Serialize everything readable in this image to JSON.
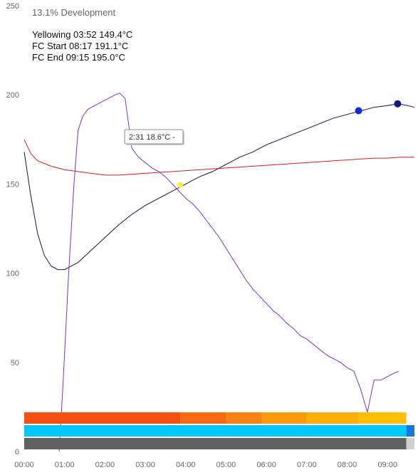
{
  "chart_data": {
    "type": "line",
    "title": "",
    "xlabel": "",
    "ylabel": "",
    "xlim": [
      0,
      580
    ],
    "ylim": [
      0,
      250
    ],
    "grid": false,
    "x_ticks": [
      "00:00",
      "01:00",
      "02:00",
      "03:00",
      "04:00",
      "05:00",
      "06:00",
      "07:00",
      "08:00",
      "09:00"
    ],
    "y_ticks": [
      "0",
      "50",
      "100",
      "150",
      "200",
      "250"
    ],
    "development_label": "13.1% Development",
    "events": [
      {
        "label": "Yellowing 03:52  149.4°C",
        "t": 232,
        "temp": 149.4,
        "color": "#f2ef3a"
      },
      {
        "label": "FC Start 08:17  191.1°C",
        "t": 497,
        "temp": 191.1,
        "color": "#1328e0"
      },
      {
        "label": "FC End 09:15  195.0°C",
        "t": 555,
        "temp": 195.0,
        "color": "#0b1a8a"
      }
    ],
    "tooltip": {
      "text": "2:31 18.6°C -"
    },
    "series": [
      {
        "color": "#13124a",
        "points": [
          [
            0,
            168
          ],
          [
            10,
            143
          ],
          [
            20,
            122
          ],
          [
            30,
            110
          ],
          [
            40,
            104
          ],
          [
            50,
            102
          ],
          [
            60,
            102
          ],
          [
            80,
            106
          ],
          [
            100,
            113
          ],
          [
            120,
            120
          ],
          [
            140,
            127
          ],
          [
            160,
            133
          ],
          [
            180,
            138
          ],
          [
            200,
            142
          ],
          [
            220,
            146
          ],
          [
            240,
            150
          ],
          [
            260,
            154
          ],
          [
            280,
            157
          ],
          [
            300,
            161
          ],
          [
            320,
            165
          ],
          [
            340,
            168
          ],
          [
            360,
            172
          ],
          [
            380,
            175
          ],
          [
            400,
            178
          ],
          [
            420,
            181
          ],
          [
            440,
            184
          ],
          [
            460,
            187
          ],
          [
            480,
            189
          ],
          [
            500,
            191
          ],
          [
            520,
            193
          ],
          [
            540,
            194
          ],
          [
            555,
            195
          ],
          [
            570,
            194
          ],
          [
            580,
            193
          ]
        ]
      },
      {
        "color": "#d81e1e",
        "points": [
          [
            0,
            175
          ],
          [
            10,
            167
          ],
          [
            20,
            163
          ],
          [
            40,
            160
          ],
          [
            60,
            158
          ],
          [
            80,
            157
          ],
          [
            100,
            156
          ],
          [
            120,
            155
          ],
          [
            140,
            155
          ],
          [
            160,
            155.5
          ],
          [
            180,
            156
          ],
          [
            200,
            156.5
          ],
          [
            220,
            157
          ],
          [
            240,
            157.5
          ],
          [
            260,
            158
          ],
          [
            280,
            158.5
          ],
          [
            300,
            159
          ],
          [
            320,
            159.5
          ],
          [
            340,
            160
          ],
          [
            360,
            160.5
          ],
          [
            380,
            161
          ],
          [
            400,
            161.5
          ],
          [
            420,
            162
          ],
          [
            440,
            162.5
          ],
          [
            460,
            163
          ],
          [
            480,
            163.5
          ],
          [
            500,
            164
          ],
          [
            520,
            164.5
          ],
          [
            540,
            164.5
          ],
          [
            560,
            165
          ],
          [
            580,
            165
          ]
        ]
      },
      {
        "color": "#7a32d8",
        "points": [
          [
            0,
            null
          ],
          [
            52,
            0
          ],
          [
            58,
            40
          ],
          [
            66,
            100
          ],
          [
            74,
            150
          ],
          [
            80,
            180
          ],
          [
            87,
            188
          ],
          [
            95,
            192
          ],
          [
            105,
            194
          ],
          [
            115,
            196
          ],
          [
            125,
            198
          ],
          [
            135,
            200
          ],
          [
            142,
            201
          ],
          [
            150,
            198
          ],
          [
            160,
            170
          ],
          [
            170,
            165
          ],
          [
            180,
            162
          ],
          [
            190,
            159
          ],
          [
            200,
            157
          ],
          [
            210,
            154
          ],
          [
            220,
            150
          ],
          [
            230,
            146
          ],
          [
            240,
            142
          ],
          [
            250,
            139
          ],
          [
            260,
            135
          ],
          [
            270,
            130
          ],
          [
            280,
            125
          ],
          [
            290,
            120
          ],
          [
            300,
            114
          ],
          [
            310,
            108
          ],
          [
            320,
            102
          ],
          [
            330,
            96
          ],
          [
            340,
            91
          ],
          [
            350,
            87
          ],
          [
            360,
            83
          ],
          [
            370,
            79
          ],
          [
            380,
            76
          ],
          [
            390,
            72
          ],
          [
            400,
            69
          ],
          [
            410,
            65
          ],
          [
            420,
            63
          ],
          [
            430,
            60
          ],
          [
            440,
            57
          ],
          [
            450,
            54
          ],
          [
            460,
            52
          ],
          [
            470,
            50
          ],
          [
            480,
            47
          ],
          [
            490,
            45
          ],
          [
            500,
            35
          ],
          [
            510,
            22
          ],
          [
            520,
            40
          ],
          [
            530,
            40
          ],
          [
            540,
            42
          ],
          [
            550,
            44
          ],
          [
            557,
            45
          ]
        ]
      }
    ],
    "bars": [
      {
        "segments": [
          {
            "from": 0,
            "to": 232,
            "color": "#f65011"
          },
          {
            "from": 232,
            "to": 300,
            "color": "#f86a10"
          },
          {
            "from": 300,
            "to": 353,
            "color": "#fa8210"
          },
          {
            "from": 353,
            "to": 420,
            "color": "#fc9a0a"
          },
          {
            "from": 420,
            "to": 497,
            "color": "#fdae08"
          },
          {
            "from": 497,
            "to": 568,
            "color": "#ffbe00"
          },
          {
            "from": 568,
            "to": 580,
            "color": "#ffffff"
          }
        ]
      },
      {
        "segments": [
          {
            "from": 0,
            "to": 568,
            "color": "#00c8ff"
          },
          {
            "from": 568,
            "to": 580,
            "color": "#1676e0"
          }
        ]
      },
      {
        "segments": [
          {
            "from": 0,
            "to": 568,
            "color": "#616161"
          },
          {
            "from": 568,
            "to": 580,
            "color": "#d0d0d0"
          }
        ]
      }
    ]
  }
}
